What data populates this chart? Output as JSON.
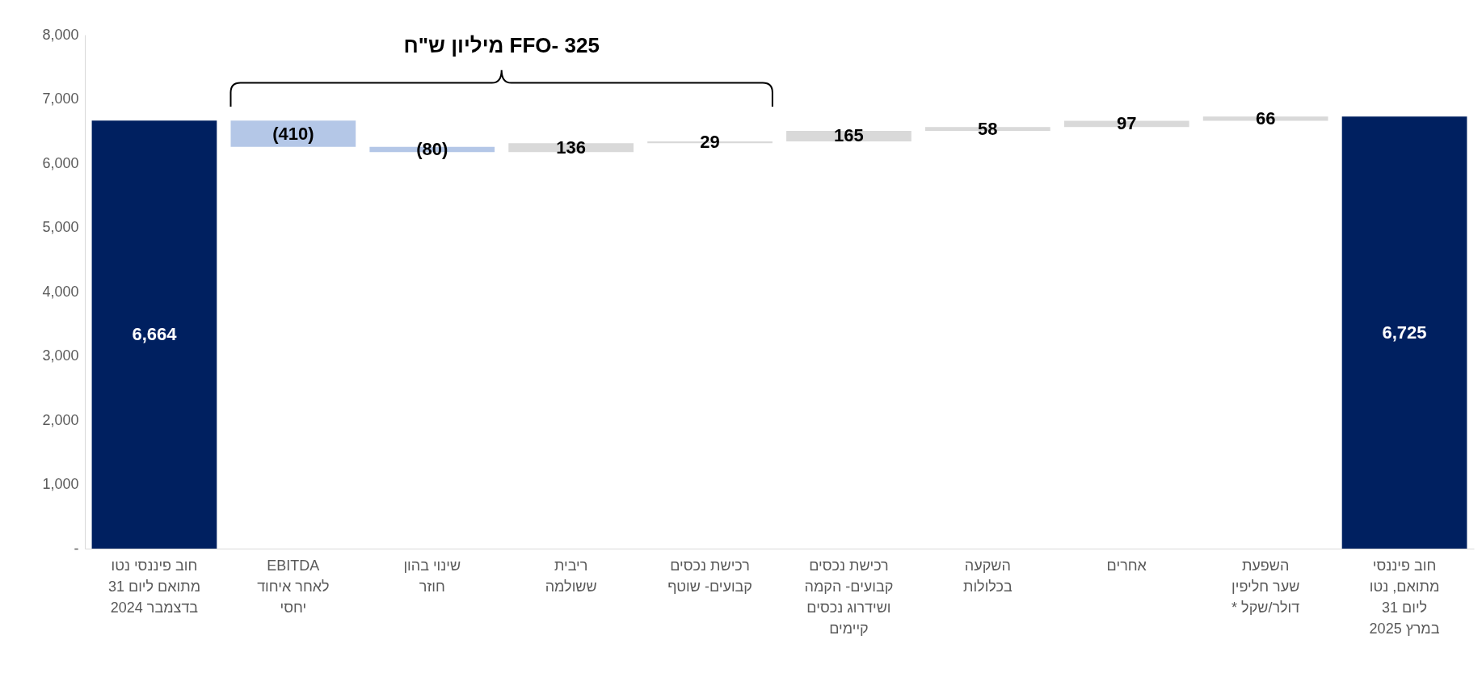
{
  "chart_data": {
    "type": "bar",
    "categories": [
      "חוב פיננסי נטו\nמתואם ליום 31\nבדצמבר 2024",
      "EBITDA\nלאחר איחוד\nיחסי",
      "שינוי בהון\nחוזר",
      "ריבית\nששולמה",
      "רכישת נכסים\nקבועים- שוטף",
      "רכישת נכסים\nקבועים- הקמה\nושידרוג נכסים\nקיימים",
      "השקעה\nבכלולות",
      "אחרים",
      "השפעת\nשער חליפין\n* דולר/שקל",
      "חוב פיננסי\nמתואם, נטו\nליום 31\nבמרץ 2025"
    ],
    "values": [
      6664,
      -410,
      -80,
      136,
      29,
      165,
      58,
      97,
      66,
      6725
    ],
    "base": [
      0,
      6664,
      6254,
      6174,
      6310,
      6339,
      6504,
      6562,
      6659,
      0
    ],
    "colors": [
      "#002060",
      "#b4c7e7",
      "#b4c7e7",
      "#d9d9d9",
      "#d9d9d9",
      "#d9d9d9",
      "#d9d9d9",
      "#d9d9d9",
      "#d9d9d9",
      "#002060"
    ],
    "value_labels": [
      "6,664",
      "(410)",
      "(80)",
      "136",
      "29",
      "165",
      "58",
      "97",
      "66",
      "6,725"
    ],
    "ylim": [
      0,
      8000
    ],
    "yticks": [
      {
        "value": 0,
        "label": "-"
      },
      {
        "value": 1000,
        "label": "1,000"
      },
      {
        "value": 2000,
        "label": "2,000"
      },
      {
        "value": 3000,
        "label": "3,000"
      },
      {
        "value": 4000,
        "label": "4,000"
      },
      {
        "value": 5000,
        "label": "5,000"
      },
      {
        "value": 6000,
        "label": "6,000"
      },
      {
        "value": 7000,
        "label": "7,000"
      },
      {
        "value": 8000,
        "label": "8,000"
      }
    ],
    "grid": false,
    "annotations": [
      "FFO- 325 מיליון ש\"ח"
    ]
  }
}
